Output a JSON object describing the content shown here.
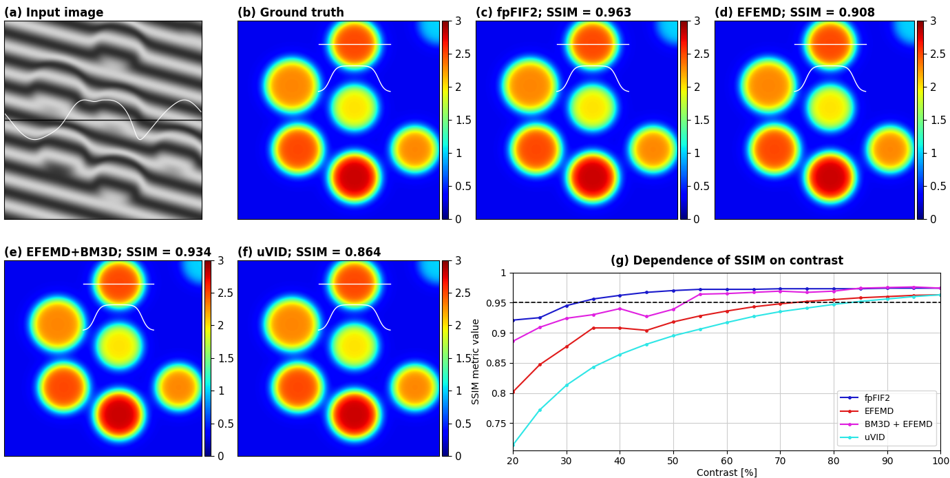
{
  "panels": [
    {
      "title": "(a) Input image",
      "type": "fringe_image",
      "carrier_cycles": [
        -2,
        7.5
      ]
    },
    {
      "title": "(b) Ground truth",
      "type": "heatmap"
    },
    {
      "title": "(c) fpFIF2; SSIM = 0.963",
      "type": "heatmap"
    },
    {
      "title": "(d) EFEMD; SSIM = 0.908",
      "type": "heatmap"
    },
    {
      "title": "(e) EFEMD+BM3D; SSIM = 0.934",
      "type": "heatmap"
    },
    {
      "title": "(f) uVID; SSIM = 0.864",
      "type": "heatmap"
    }
  ],
  "heatmap": {
    "background": 0.3,
    "spots": [
      {
        "x": 0.58,
        "y": 0.12,
        "radius": 0.12,
        "value": 2.5
      },
      {
        "x": 0.27,
        "y": 0.33,
        "radius": 0.13,
        "value": 2.3
      },
      {
        "x": 0.58,
        "y": 0.44,
        "radius": 0.11,
        "value": 2.0
      },
      {
        "x": 0.3,
        "y": 0.65,
        "radius": 0.12,
        "value": 2.5
      },
      {
        "x": 0.88,
        "y": 0.65,
        "radius": 0.11,
        "value": 2.3
      },
      {
        "x": 0.58,
        "y": 0.79,
        "radius": 0.12,
        "value": 2.8
      },
      {
        "x": 1.0,
        "y": 0.02,
        "radius": 0.1,
        "value": 1.0
      }
    ],
    "clim": [
      0,
      3
    ],
    "cticks": [
      0,
      0.5,
      1,
      1.5,
      2,
      2.5,
      3
    ]
  },
  "chart_data": {
    "type": "line",
    "title": "(g) Dependence of SSIM on contrast",
    "x_label": "Contrast [%]",
    "y_label": "SSIM metric value",
    "x": [
      20,
      25,
      30,
      35,
      40,
      45,
      50,
      55,
      60,
      65,
      70,
      75,
      80,
      85,
      90,
      95,
      100
    ],
    "series": [
      {
        "name": "fpFIF2",
        "color": "#1a1acc",
        "marker": ".",
        "values": [
          0.921,
          0.925,
          0.945,
          0.956,
          0.962,
          0.967,
          0.97,
          0.972,
          0.972,
          0.972,
          0.973,
          0.973,
          0.973,
          0.973,
          0.974,
          0.974,
          0.974
        ]
      },
      {
        "name": "EFEMD",
        "color": "#e01b1b",
        "marker": ".",
        "values": [
          0.802,
          0.847,
          0.877,
          0.908,
          0.908,
          0.904,
          0.918,
          0.928,
          0.936,
          0.943,
          0.948,
          0.952,
          0.955,
          0.958,
          0.96,
          0.962,
          0.963
        ]
      },
      {
        "name": "BM3D + EFEMD",
        "color": "#e020e0",
        "marker": ".",
        "values": [
          0.886,
          0.909,
          0.924,
          0.93,
          0.94,
          0.927,
          0.939,
          0.964,
          0.965,
          0.967,
          0.969,
          0.967,
          0.969,
          0.974,
          0.975,
          0.976,
          0.974
        ]
      },
      {
        "name": "uVID",
        "color": "#2ee6e6",
        "marker": ".",
        "values": [
          0.714,
          0.772,
          0.813,
          0.843,
          0.864,
          0.881,
          0.895,
          0.906,
          0.917,
          0.927,
          0.935,
          0.941,
          0.947,
          0.952,
          0.956,
          0.96,
          0.963
        ]
      }
    ],
    "reference_line": 0.95,
    "xlim": [
      20,
      100
    ],
    "xticks": [
      20,
      30,
      40,
      50,
      60,
      70,
      80,
      90,
      100
    ],
    "ylim": [
      0.705,
      1.0
    ],
    "yticks": [
      0.75,
      0.8,
      0.85,
      0.9,
      0.95,
      1
    ],
    "grid": true,
    "legend": "lower right"
  }
}
